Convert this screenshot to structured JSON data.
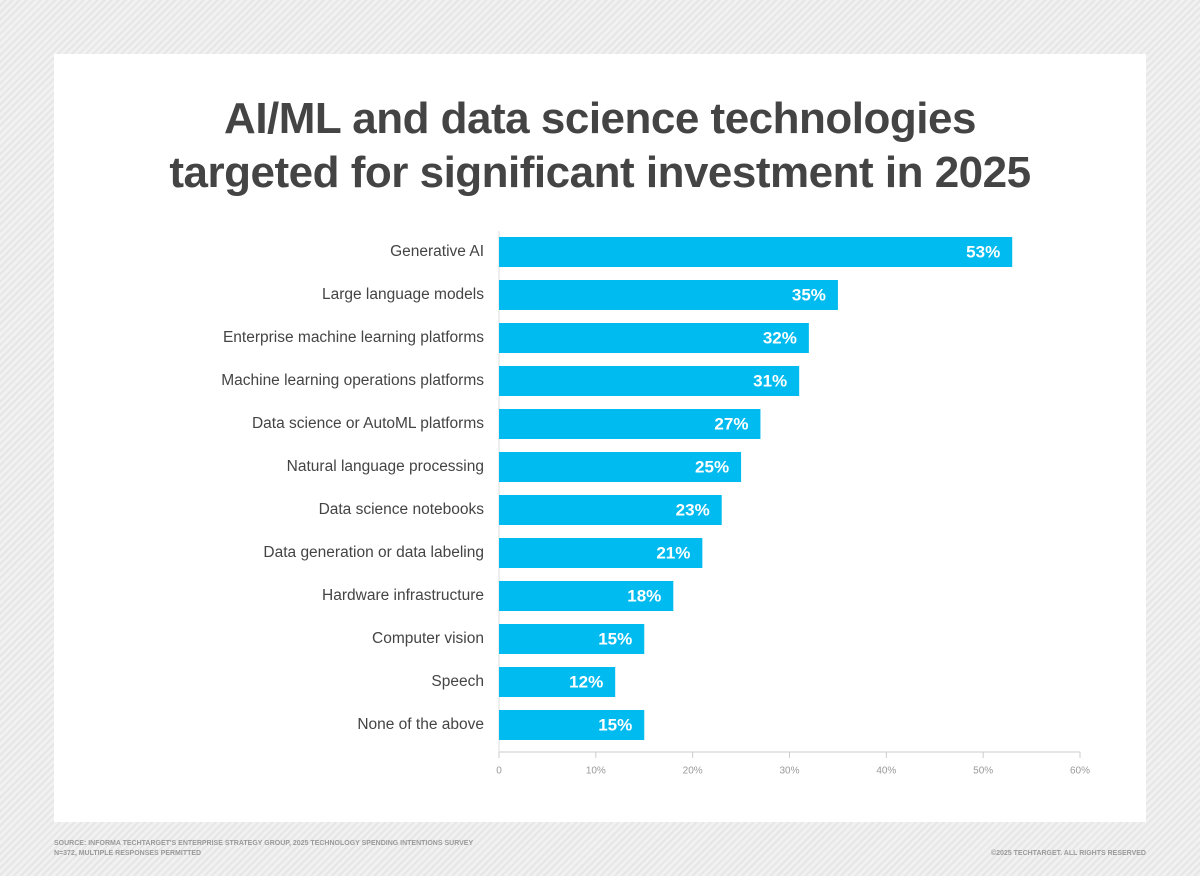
{
  "chart_data": {
    "type": "bar",
    "orientation": "horizontal",
    "title": "AI/ML and data science technologies\ntargeted for significant investment in 2025",
    "categories": [
      "Generative AI",
      "Large language models",
      "Enterprise machine learning platforms",
      "Machine learning operations platforms",
      "Data science or AutoML platforms",
      "Natural language processing",
      "Data science notebooks",
      "Data generation or data labeling",
      "Hardware infrastructure",
      "Computer vision",
      "Speech",
      "None of the above"
    ],
    "values": [
      53,
      35,
      32,
      31,
      27,
      25,
      23,
      21,
      18,
      15,
      12,
      15
    ],
    "value_labels": [
      "53%",
      "35%",
      "32%",
      "31%",
      "27%",
      "25%",
      "23%",
      "21%",
      "18%",
      "15%",
      "12%",
      "15%"
    ],
    "color": "#00bbf0",
    "xlim": [
      0,
      60
    ],
    "xticks": [
      0,
      {
        "value": 10,
        "label": "10%"
      },
      {
        "value": 20,
        "label": "20%"
      },
      {
        "value": 30,
        "label": "30%"
      },
      {
        "value": 40,
        "label": "40%"
      },
      {
        "value": 50,
        "label": "50%"
      },
      {
        "value": 60,
        "label": "60%"
      }
    ],
    "source": "SOURCE: INFORMA TECHTARGET'S ENTERPRISE STRATEGY GROUP, 2025 TECHNOLOGY SPENDING INTENTIONS SURVEY",
    "note": "N=372, MULTIPLE RESPONSES PERMITTED",
    "copyright": "©2025 TECHTARGET. ALL RIGHTS RESERVED"
  }
}
